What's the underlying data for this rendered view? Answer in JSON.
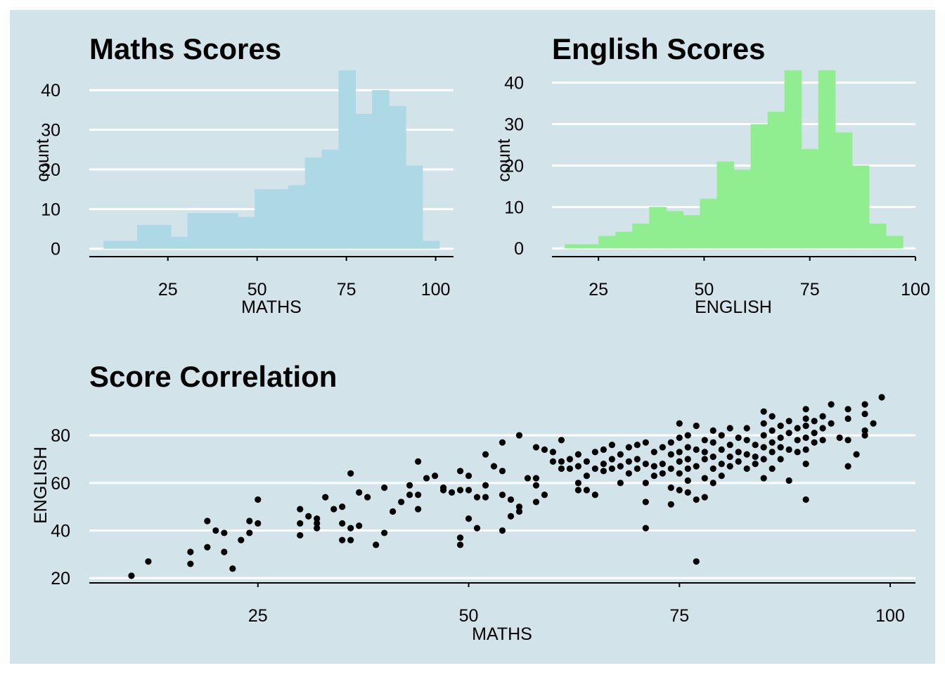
{
  "chart_data": [
    {
      "id": "maths",
      "type": "histogram",
      "title": "Maths Scores",
      "xlabel": "MATHS",
      "ylabel": "count",
      "xlim": [
        3,
        105
      ],
      "ylim": [
        -2,
        45
      ],
      "xticks": [
        25,
        50,
        75,
        100
      ],
      "yticks": [
        0,
        10,
        20,
        30,
        40
      ],
      "fill": "#add8e6",
      "bin_width": 4.7,
      "bins_start": 7,
      "counts": [
        2,
        2,
        6,
        6,
        3,
        9,
        9,
        9,
        8,
        15,
        15,
        16,
        23,
        25,
        45,
        34,
        40,
        36,
        21,
        2
      ],
      "grid": "horizontal"
    },
    {
      "id": "english",
      "type": "histogram",
      "title": "English Scores",
      "xlabel": "ENGLISH",
      "ylabel": "count",
      "xlim": [
        14,
        100
      ],
      "ylim": [
        -2,
        43
      ],
      "xticks": [
        25,
        50,
        75,
        100
      ],
      "yticks": [
        0,
        10,
        20,
        30,
        40
      ],
      "fill": "#90ee90",
      "bin_width": 4,
      "bins_start": 17,
      "counts": [
        1,
        1,
        3,
        4,
        6,
        10,
        9,
        8,
        12,
        21,
        19,
        30,
        33,
        43,
        24,
        43,
        28,
        20,
        6,
        3
      ],
      "grid": "horizontal"
    },
    {
      "id": "correlation",
      "type": "scatter",
      "title": "Score Correlation",
      "xlabel": "MATHS",
      "ylabel": "ENGLISH",
      "xlim": [
        5,
        103
      ],
      "ylim": [
        18,
        96
      ],
      "xticks": [
        25,
        50,
        75,
        100
      ],
      "yticks": [
        20,
        40,
        60,
        80
      ],
      "point_color": "#000000",
      "grid": "horizontal",
      "points": [
        [
          10,
          21
        ],
        [
          12,
          27
        ],
        [
          17,
          31
        ],
        [
          17,
          26
        ],
        [
          19,
          44
        ],
        [
          19,
          33
        ],
        [
          20,
          40
        ],
        [
          21,
          39
        ],
        [
          21,
          31
        ],
        [
          22,
          24
        ],
        [
          23,
          36
        ],
        [
          24,
          44
        ],
        [
          24,
          39
        ],
        [
          25,
          53
        ],
        [
          25,
          43
        ],
        [
          30,
          49
        ],
        [
          30,
          43
        ],
        [
          30,
          38
        ],
        [
          31,
          46
        ],
        [
          32,
          45
        ],
        [
          32,
          43
        ],
        [
          32,
          41
        ],
        [
          33,
          54
        ],
        [
          34,
          49
        ],
        [
          35,
          50
        ],
        [
          35,
          43
        ],
        [
          35,
          36
        ],
        [
          36,
          64
        ],
        [
          36,
          41
        ],
        [
          36,
          36
        ],
        [
          37,
          56
        ],
        [
          37,
          42
        ],
        [
          38,
          54
        ],
        [
          39,
          34
        ],
        [
          40,
          58
        ],
        [
          40,
          39
        ],
        [
          41,
          48
        ],
        [
          42,
          52
        ],
        [
          43,
          55
        ],
        [
          43,
          59
        ],
        [
          44,
          69
        ],
        [
          44,
          55
        ],
        [
          44,
          49
        ],
        [
          45,
          62
        ],
        [
          46,
          63
        ],
        [
          47,
          58
        ],
        [
          47,
          57
        ],
        [
          48,
          56
        ],
        [
          49,
          65
        ],
        [
          49,
          57
        ],
        [
          49,
          37
        ],
        [
          49,
          34
        ],
        [
          50,
          63
        ],
        [
          50,
          57
        ],
        [
          50,
          45
        ],
        [
          51,
          54
        ],
        [
          51,
          41
        ],
        [
          52,
          72
        ],
        [
          52,
          59
        ],
        [
          52,
          54
        ],
        [
          53,
          67
        ],
        [
          54,
          77
        ],
        [
          54,
          65
        ],
        [
          54,
          55
        ],
        [
          54,
          40
        ],
        [
          55,
          53
        ],
        [
          55,
          46
        ],
        [
          56,
          80
        ],
        [
          56,
          50
        ],
        [
          56,
          48
        ],
        [
          57,
          62
        ],
        [
          58,
          75
        ],
        [
          58,
          62
        ],
        [
          58,
          59
        ],
        [
          58,
          52
        ],
        [
          59,
          74
        ],
        [
          59,
          55
        ],
        [
          60,
          73
        ],
        [
          60,
          69
        ],
        [
          61,
          78
        ],
        [
          61,
          69
        ],
        [
          61,
          66
        ],
        [
          62,
          70
        ],
        [
          62,
          66
        ],
        [
          63,
          72
        ],
        [
          63,
          67
        ],
        [
          63,
          60
        ],
        [
          63,
          57
        ],
        [
          64,
          69
        ],
        [
          64,
          63
        ],
        [
          64,
          57
        ],
        [
          65,
          73
        ],
        [
          65,
          66
        ],
        [
          65,
          55
        ],
        [
          66,
          74
        ],
        [
          66,
          68
        ],
        [
          66,
          65
        ],
        [
          67,
          76
        ],
        [
          67,
          70
        ],
        [
          67,
          66
        ],
        [
          68,
          72
        ],
        [
          68,
          67
        ],
        [
          68,
          60
        ],
        [
          69,
          75
        ],
        [
          69,
          69
        ],
        [
          69,
          64
        ],
        [
          70,
          76
        ],
        [
          70,
          70
        ],
        [
          70,
          66
        ],
        [
          71,
          77
        ],
        [
          71,
          68
        ],
        [
          71,
          60
        ],
        [
          71,
          52
        ],
        [
          71,
          41
        ],
        [
          72,
          73
        ],
        [
          72,
          67
        ],
        [
          72,
          63
        ],
        [
          73,
          75
        ],
        [
          73,
          68
        ],
        [
          73,
          64
        ],
        [
          74,
          77
        ],
        [
          74,
          72
        ],
        [
          74,
          66
        ],
        [
          74,
          58
        ],
        [
          74,
          51
        ],
        [
          75,
          85
        ],
        [
          75,
          79
        ],
        [
          75,
          73
        ],
        [
          75,
          69
        ],
        [
          75,
          64
        ],
        [
          75,
          57
        ],
        [
          76,
          80
        ],
        [
          76,
          75
        ],
        [
          76,
          70
        ],
        [
          76,
          66
        ],
        [
          76,
          61
        ],
        [
          76,
          56
        ],
        [
          77,
          84
        ],
        [
          77,
          74
        ],
        [
          77,
          67
        ],
        [
          77,
          53
        ],
        [
          77,
          27
        ],
        [
          78,
          78
        ],
        [
          78,
          73
        ],
        [
          78,
          70
        ],
        [
          78,
          62
        ],
        [
          78,
          54
        ],
        [
          79,
          82
        ],
        [
          79,
          77
        ],
        [
          79,
          71
        ],
        [
          79,
          66
        ],
        [
          79,
          60
        ],
        [
          80,
          80
        ],
        [
          80,
          74
        ],
        [
          80,
          68
        ],
        [
          80,
          63
        ],
        [
          81,
          83
        ],
        [
          81,
          76
        ],
        [
          81,
          71
        ],
        [
          81,
          67
        ],
        [
          82,
          79
        ],
        [
          82,
          73
        ],
        [
          82,
          69
        ],
        [
          83,
          83
        ],
        [
          83,
          78
        ],
        [
          83,
          72
        ],
        [
          83,
          66
        ],
        [
          84,
          76
        ],
        [
          84,
          71
        ],
        [
          84,
          68
        ],
        [
          85,
          90
        ],
        [
          85,
          85
        ],
        [
          85,
          80
        ],
        [
          85,
          75
        ],
        [
          85,
          70
        ],
        [
          85,
          62
        ],
        [
          86,
          88
        ],
        [
          86,
          82
        ],
        [
          86,
          77
        ],
        [
          86,
          73
        ],
        [
          86,
          66
        ],
        [
          87,
          84
        ],
        [
          87,
          79
        ],
        [
          87,
          75
        ],
        [
          87,
          70
        ],
        [
          88,
          86
        ],
        [
          88,
          81
        ],
        [
          88,
          74
        ],
        [
          88,
          61
        ],
        [
          89,
          83
        ],
        [
          89,
          78
        ],
        [
          89,
          73
        ],
        [
          90,
          91
        ],
        [
          90,
          87
        ],
        [
          90,
          84
        ],
        [
          90,
          79
        ],
        [
          90,
          74
        ],
        [
          90,
          68
        ],
        [
          90,
          53
        ],
        [
          91,
          86
        ],
        [
          91,
          81
        ],
        [
          91,
          77
        ],
        [
          92,
          88
        ],
        [
          92,
          83
        ],
        [
          92,
          78
        ],
        [
          93,
          93
        ],
        [
          93,
          85
        ],
        [
          94,
          79
        ],
        [
          95,
          91
        ],
        [
          95,
          87
        ],
        [
          95,
          78
        ],
        [
          95,
          67
        ],
        [
          96,
          72
        ],
        [
          97,
          93
        ],
        [
          97,
          89
        ],
        [
          97,
          82
        ],
        [
          97,
          80
        ],
        [
          98,
          85
        ],
        [
          99,
          96
        ]
      ]
    }
  ]
}
